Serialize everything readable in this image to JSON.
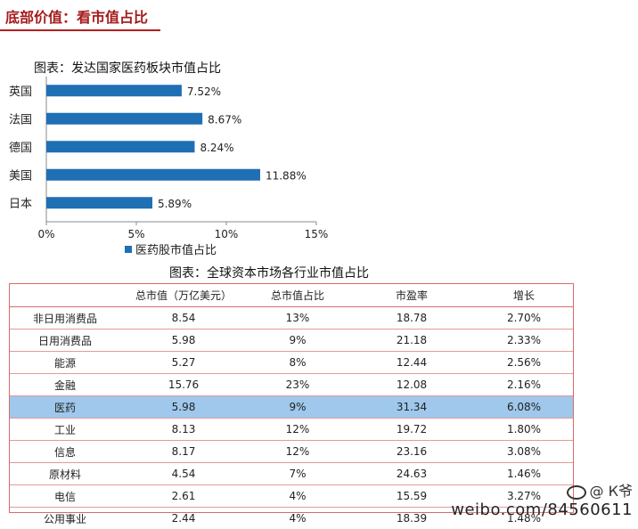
{
  "header": {
    "title": "底部价值：看市值占比"
  },
  "chart_data": [
    {
      "type": "bar",
      "orientation": "horizontal",
      "title": "图表：发达国家医药板块市值占比",
      "categories": [
        "英国",
        "法国",
        "德国",
        "美国",
        "日本"
      ],
      "series": [
        {
          "name": "医药股市值占比",
          "values": [
            7.52,
            8.67,
            8.24,
            11.88,
            5.89
          ],
          "color": "#1f6fb5"
        }
      ],
      "value_labels": [
        "7.52%",
        "8.67%",
        "8.24%",
        "11.88%",
        "5.89%"
      ],
      "xlim": [
        0,
        15
      ],
      "xticks": [
        0,
        5,
        10,
        15
      ],
      "xtick_labels": [
        "0%",
        "5%",
        "10%",
        "15%"
      ],
      "legend": "bottom",
      "grid": false
    },
    {
      "type": "table",
      "title": "图表：全球资本市场各行业市值占比",
      "columns": [
        "",
        "总市值（万亿美元）",
        "总市值占比",
        "市盈率",
        "增长"
      ],
      "rows": [
        [
          "非日用消费品",
          "8.54",
          "13%",
          "18.78",
          "2.70%"
        ],
        [
          "日用消费品",
          "5.98",
          "9%",
          "21.18",
          "2.33%"
        ],
        [
          "能源",
          "5.27",
          "8%",
          "12.44",
          "2.56%"
        ],
        [
          "金融",
          "15.76",
          "23%",
          "12.08",
          "2.16%"
        ],
        [
          "医药",
          "5.98",
          "9%",
          "31.34",
          "6.08%"
        ],
        [
          "工业",
          "8.13",
          "12%",
          "19.72",
          "1.80%"
        ],
        [
          "信息",
          "8.17",
          "12%",
          "23.16",
          "3.08%"
        ],
        [
          "原材料",
          "4.54",
          "7%",
          "24.63",
          "1.46%"
        ],
        [
          "电信",
          "2.61",
          "4%",
          "15.59",
          "3.27%"
        ],
        [
          "公用事业",
          "2.44",
          "4%",
          "18.39",
          "1.48%"
        ]
      ],
      "highlight_row": 4,
      "highlight_color": "#9fc8ec"
    }
  ],
  "watermark": {
    "handle": "@ К爷",
    "url": "weibo.com/84560611"
  }
}
